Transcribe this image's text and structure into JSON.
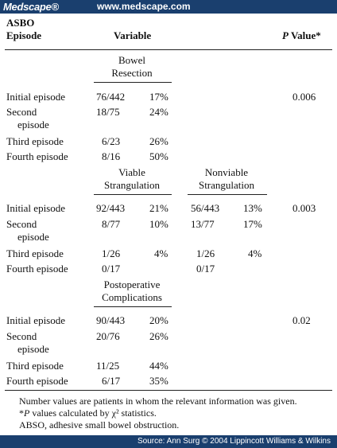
{
  "header": {
    "brand": "Medscape®",
    "url": "www.medscape.com"
  },
  "columns": {
    "asbo_line1": "ASBO",
    "asbo_line2": "Episode",
    "variable": "Variable",
    "p_value": "P Value*"
  },
  "sections": [
    {
      "title_line1": "Bowel",
      "title_line2": "Resection",
      "rows": [
        {
          "label_line1": "Initial episode",
          "label_line2": "",
          "a": "76/442",
          "b": "17%",
          "p": "0.006"
        },
        {
          "label_line1": "Second",
          "label_line2": "episode",
          "a": "18/75",
          "b": "24%",
          "p": ""
        },
        {
          "label_line1": "Third episode",
          "label_line2": "",
          "a": "6/23",
          "b": "26%",
          "p": ""
        },
        {
          "label_line1": "Fourth episode",
          "label_line2": "",
          "a": "8/16",
          "b": "50%",
          "p": ""
        }
      ]
    },
    {
      "title_line1": "Viable",
      "title_line2": "Strangulation",
      "title2_line1": "Nonviable",
      "title2_line2": "Strangulation",
      "rows": [
        {
          "label_line1": "Initial episode",
          "label_line2": "",
          "a": "92/443",
          "b": "21%",
          "c": "56/443",
          "d": "13%",
          "p": "0.003"
        },
        {
          "label_line1": "Second",
          "label_line2": "episode",
          "a": "8/77",
          "b": "10%",
          "c": "13/77",
          "d": "17%",
          "p": ""
        },
        {
          "label_line1": "Third episode",
          "label_line2": "",
          "a": "1/26",
          "b": "4%",
          "c": "1/26",
          "d": "4%",
          "p": ""
        },
        {
          "label_line1": "Fourth episode",
          "label_line2": "",
          "a": "0/17",
          "b": "",
          "c": "0/17",
          "d": "",
          "p": ""
        }
      ]
    },
    {
      "title_line1": "Postoperative",
      "title_line2": "Complications",
      "rows": [
        {
          "label_line1": "Initial episode",
          "label_line2": "",
          "a": "90/443",
          "b": "20%",
          "p": "0.02"
        },
        {
          "label_line1": "Second",
          "label_line2": "episode",
          "a": "20/76",
          "b": "26%",
          "p": ""
        },
        {
          "label_line1": "Third episode",
          "label_line2": "",
          "a": "11/25",
          "b": "44%",
          "p": ""
        },
        {
          "label_line1": "Fourth episode",
          "label_line2": "",
          "a": "6/17",
          "b": "35%",
          "p": ""
        }
      ]
    }
  ],
  "footnotes": {
    "line1": "Number values are patients in whom the relevant information was given.",
    "line2_p": "P",
    "line2_rest": " values calculated by χ² statistics.",
    "line2_star": "*",
    "line3": "ABSO, adhesive small bowel obstruction."
  },
  "source": "Source: Ann Surg © 2004 Lippincott Williams & Wilkins"
}
